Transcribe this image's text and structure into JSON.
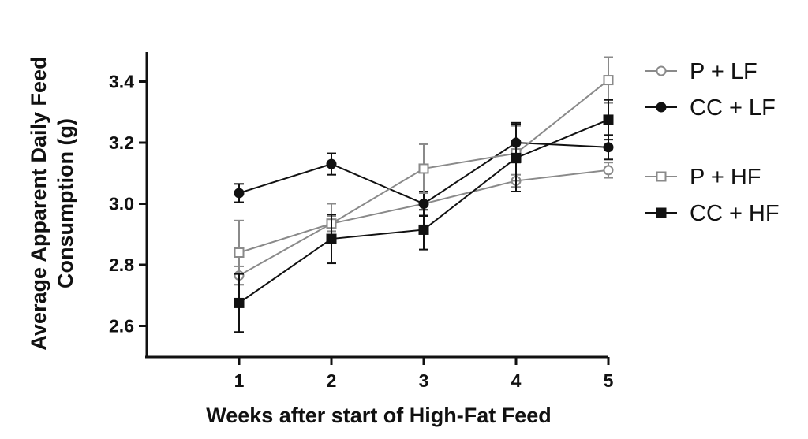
{
  "chart_data": {
    "type": "line",
    "title": "",
    "xlabel": "Weeks after start of High-Fat Feed",
    "ylabel_lines": [
      "Average Apparent Daily Feed",
      "Consumption (g)"
    ],
    "x": [
      1,
      2,
      3,
      4,
      5
    ],
    "x_tick_labels": [
      "1",
      "2",
      "3",
      "4",
      "5"
    ],
    "y_tick_values": [
      2.6,
      2.8,
      3.0,
      3.2,
      3.4
    ],
    "y_tick_labels": [
      "2.6",
      "2.8",
      "3.0",
      "3.2",
      "3.4"
    ],
    "xlim": [
      0,
      5
    ],
    "ylim": [
      2.5,
      3.5
    ],
    "grid": false,
    "legend_position": "right",
    "series": [
      {
        "name": "P + LF",
        "marker": "circle",
        "filled": false,
        "color": "#8a8a8a",
        "values": [
          2.765,
          2.935,
          3.0,
          3.075,
          3.11
        ],
        "errors": [
          0.03,
          0.025,
          0.035,
          0.02,
          0.025
        ]
      },
      {
        "name": "CC + LF",
        "marker": "circle",
        "filled": true,
        "color": "#111111",
        "values": [
          3.035,
          3.13,
          3.0,
          3.2,
          3.185
        ],
        "errors": [
          0.03,
          0.035,
          0.04,
          0.065,
          0.04
        ]
      },
      {
        "name": "P + HF",
        "marker": "square",
        "filled": false,
        "color": "#8a8a8a",
        "values": [
          2.84,
          2.935,
          3.115,
          3.165,
          3.405
        ],
        "errors": [
          0.105,
          0.065,
          0.08,
          0.09,
          0.075
        ]
      },
      {
        "name": "CC + HF",
        "marker": "square",
        "filled": true,
        "color": "#111111",
        "values": [
          2.675,
          2.885,
          2.915,
          3.15,
          3.275
        ],
        "errors": [
          0.095,
          0.08,
          0.065,
          0.11,
          0.065
        ]
      }
    ]
  }
}
